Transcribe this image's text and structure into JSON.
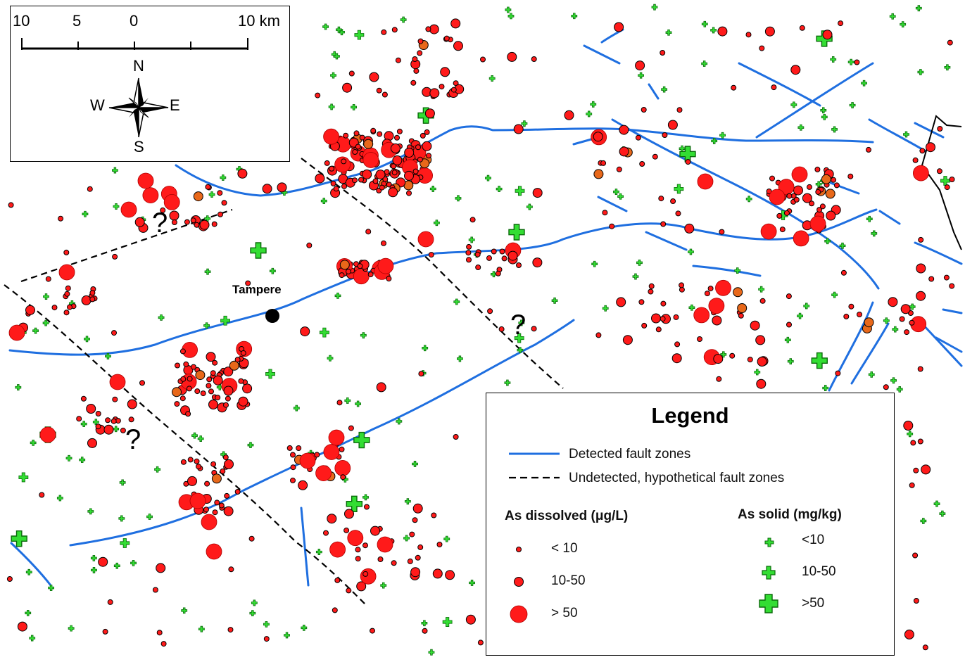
{
  "scale_bar": {
    "ticks": [
      "10",
      "5",
      "0",
      "10 km"
    ]
  },
  "compass": {
    "n": "N",
    "s": "S",
    "e": "E",
    "w": "W"
  },
  "place": {
    "city": "Tampere"
  },
  "question_marks": [
    "?",
    "?",
    "?",
    "?"
  ],
  "legend": {
    "title": "Legend",
    "detected": "Detected fault zones",
    "undetected": "Undetected, hypothetical fault zones",
    "dissolved_head": "As dissolved (μg/L)",
    "solid_head": "As solid (mg/kg)",
    "dissolved_classes": [
      "< 10",
      "10-50",
      "> 50"
    ],
    "solid_classes": [
      "<10",
      "10-50",
      ">50"
    ]
  },
  "colors": {
    "fault_detected": "#1f6fe0",
    "fault_hypothetical": "#000000",
    "dissolved": "#ff1a1a",
    "dissolved_mid": "#e8681a",
    "solid": "#33dd33"
  }
}
